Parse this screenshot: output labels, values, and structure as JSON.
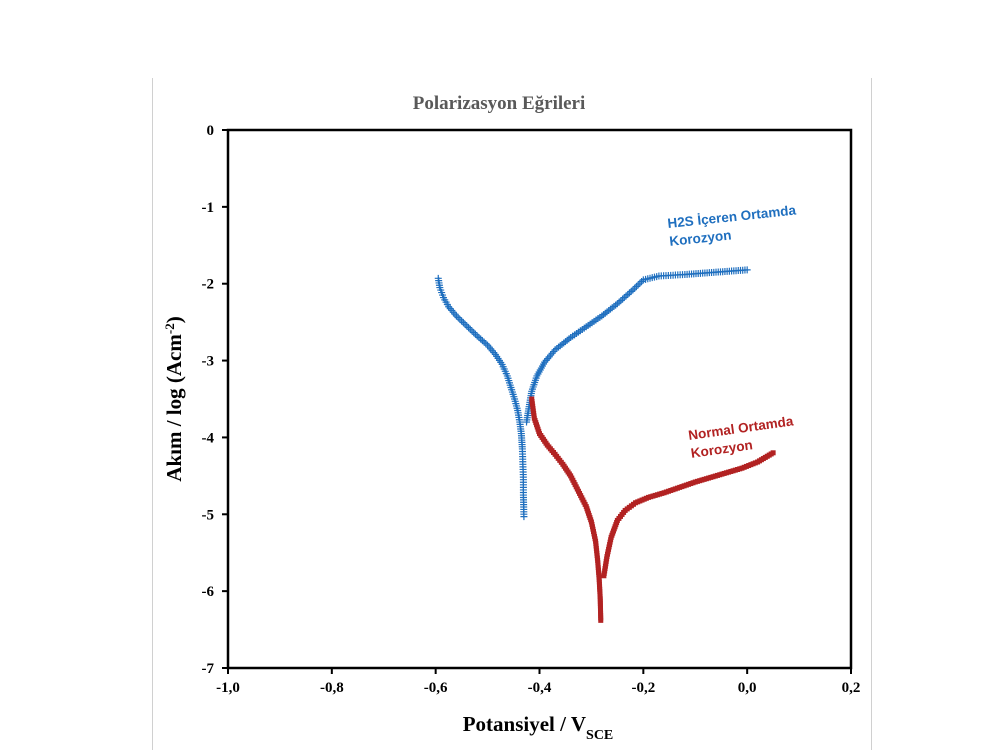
{
  "chart_data": {
    "type": "scatter",
    "title": "Polarizasyon Eğrileri",
    "xlabel": "Potansiyel / V",
    "xlabel_sub": "SCE",
    "ylabel": "Akım / log (Acm",
    "ylabel_sup": "-2",
    "ylabel_end": ")",
    "xlim": [
      -1.0,
      0.2
    ],
    "ylim": [
      -7,
      0
    ],
    "xticks": [
      "-1,0",
      "-0,8",
      "-0,6",
      "-0,4",
      "-0,2",
      "0,0",
      "0,2"
    ],
    "yticks": [
      "0",
      "-1",
      "-2",
      "-3",
      "-4",
      "-5",
      "-6",
      "-7"
    ],
    "grid": false,
    "series": [
      {
        "name_lines": [
          "H2S İçeren Ortamda",
          "Korozyon"
        ],
        "color": "#1f6fbf",
        "marker": "plus",
        "points": [
          [
            -0.595,
            -1.93
          ],
          [
            -0.592,
            -2.05
          ],
          [
            -0.585,
            -2.18
          ],
          [
            -0.575,
            -2.3
          ],
          [
            -0.56,
            -2.42
          ],
          [
            -0.54,
            -2.55
          ],
          [
            -0.52,
            -2.68
          ],
          [
            -0.5,
            -2.8
          ],
          [
            -0.485,
            -2.92
          ],
          [
            -0.472,
            -3.05
          ],
          [
            -0.462,
            -3.2
          ],
          [
            -0.455,
            -3.35
          ],
          [
            -0.448,
            -3.5
          ],
          [
            -0.442,
            -3.65
          ],
          [
            -0.438,
            -3.8
          ],
          [
            -0.435,
            -3.95
          ],
          [
            -0.433,
            -4.15
          ],
          [
            -0.432,
            -4.35
          ],
          [
            -0.431,
            -4.55
          ],
          [
            -0.431,
            -4.75
          ],
          [
            -0.43,
            -5.03
          ],
          [
            -0.425,
            -3.8
          ],
          [
            -0.42,
            -3.6
          ],
          [
            -0.415,
            -3.4
          ],
          [
            -0.405,
            -3.2
          ],
          [
            -0.39,
            -3.02
          ],
          [
            -0.37,
            -2.86
          ],
          [
            -0.34,
            -2.7
          ],
          [
            -0.31,
            -2.56
          ],
          [
            -0.28,
            -2.42
          ],
          [
            -0.25,
            -2.26
          ],
          [
            -0.22,
            -2.08
          ],
          [
            -0.2,
            -1.95
          ],
          [
            -0.17,
            -1.9
          ],
          [
            -0.12,
            -1.88
          ],
          [
            -0.06,
            -1.85
          ],
          [
            0.0,
            -1.82
          ]
        ]
      },
      {
        "name_lines": [
          "Normal Ortamda",
          "Korozyon"
        ],
        "color": "#b22222",
        "marker": "square",
        "points": [
          [
            -0.415,
            -3.5
          ],
          [
            -0.41,
            -3.75
          ],
          [
            -0.4,
            -3.95
          ],
          [
            -0.385,
            -4.1
          ],
          [
            -0.37,
            -4.22
          ],
          [
            -0.355,
            -4.35
          ],
          [
            -0.34,
            -4.5
          ],
          [
            -0.325,
            -4.7
          ],
          [
            -0.31,
            -4.9
          ],
          [
            -0.3,
            -5.1
          ],
          [
            -0.292,
            -5.35
          ],
          [
            -0.288,
            -5.6
          ],
          [
            -0.285,
            -5.85
          ],
          [
            -0.283,
            -6.1
          ],
          [
            -0.282,
            -6.38
          ],
          [
            -0.276,
            -5.8
          ],
          [
            -0.27,
            -5.55
          ],
          [
            -0.262,
            -5.3
          ],
          [
            -0.25,
            -5.08
          ],
          [
            -0.235,
            -4.95
          ],
          [
            -0.215,
            -4.85
          ],
          [
            -0.19,
            -4.78
          ],
          [
            -0.16,
            -4.72
          ],
          [
            -0.13,
            -4.65
          ],
          [
            -0.1,
            -4.58
          ],
          [
            -0.07,
            -4.52
          ],
          [
            -0.04,
            -4.46
          ],
          [
            -0.01,
            -4.4
          ],
          [
            0.02,
            -4.32
          ],
          [
            0.05,
            -4.2
          ]
        ]
      }
    ]
  }
}
